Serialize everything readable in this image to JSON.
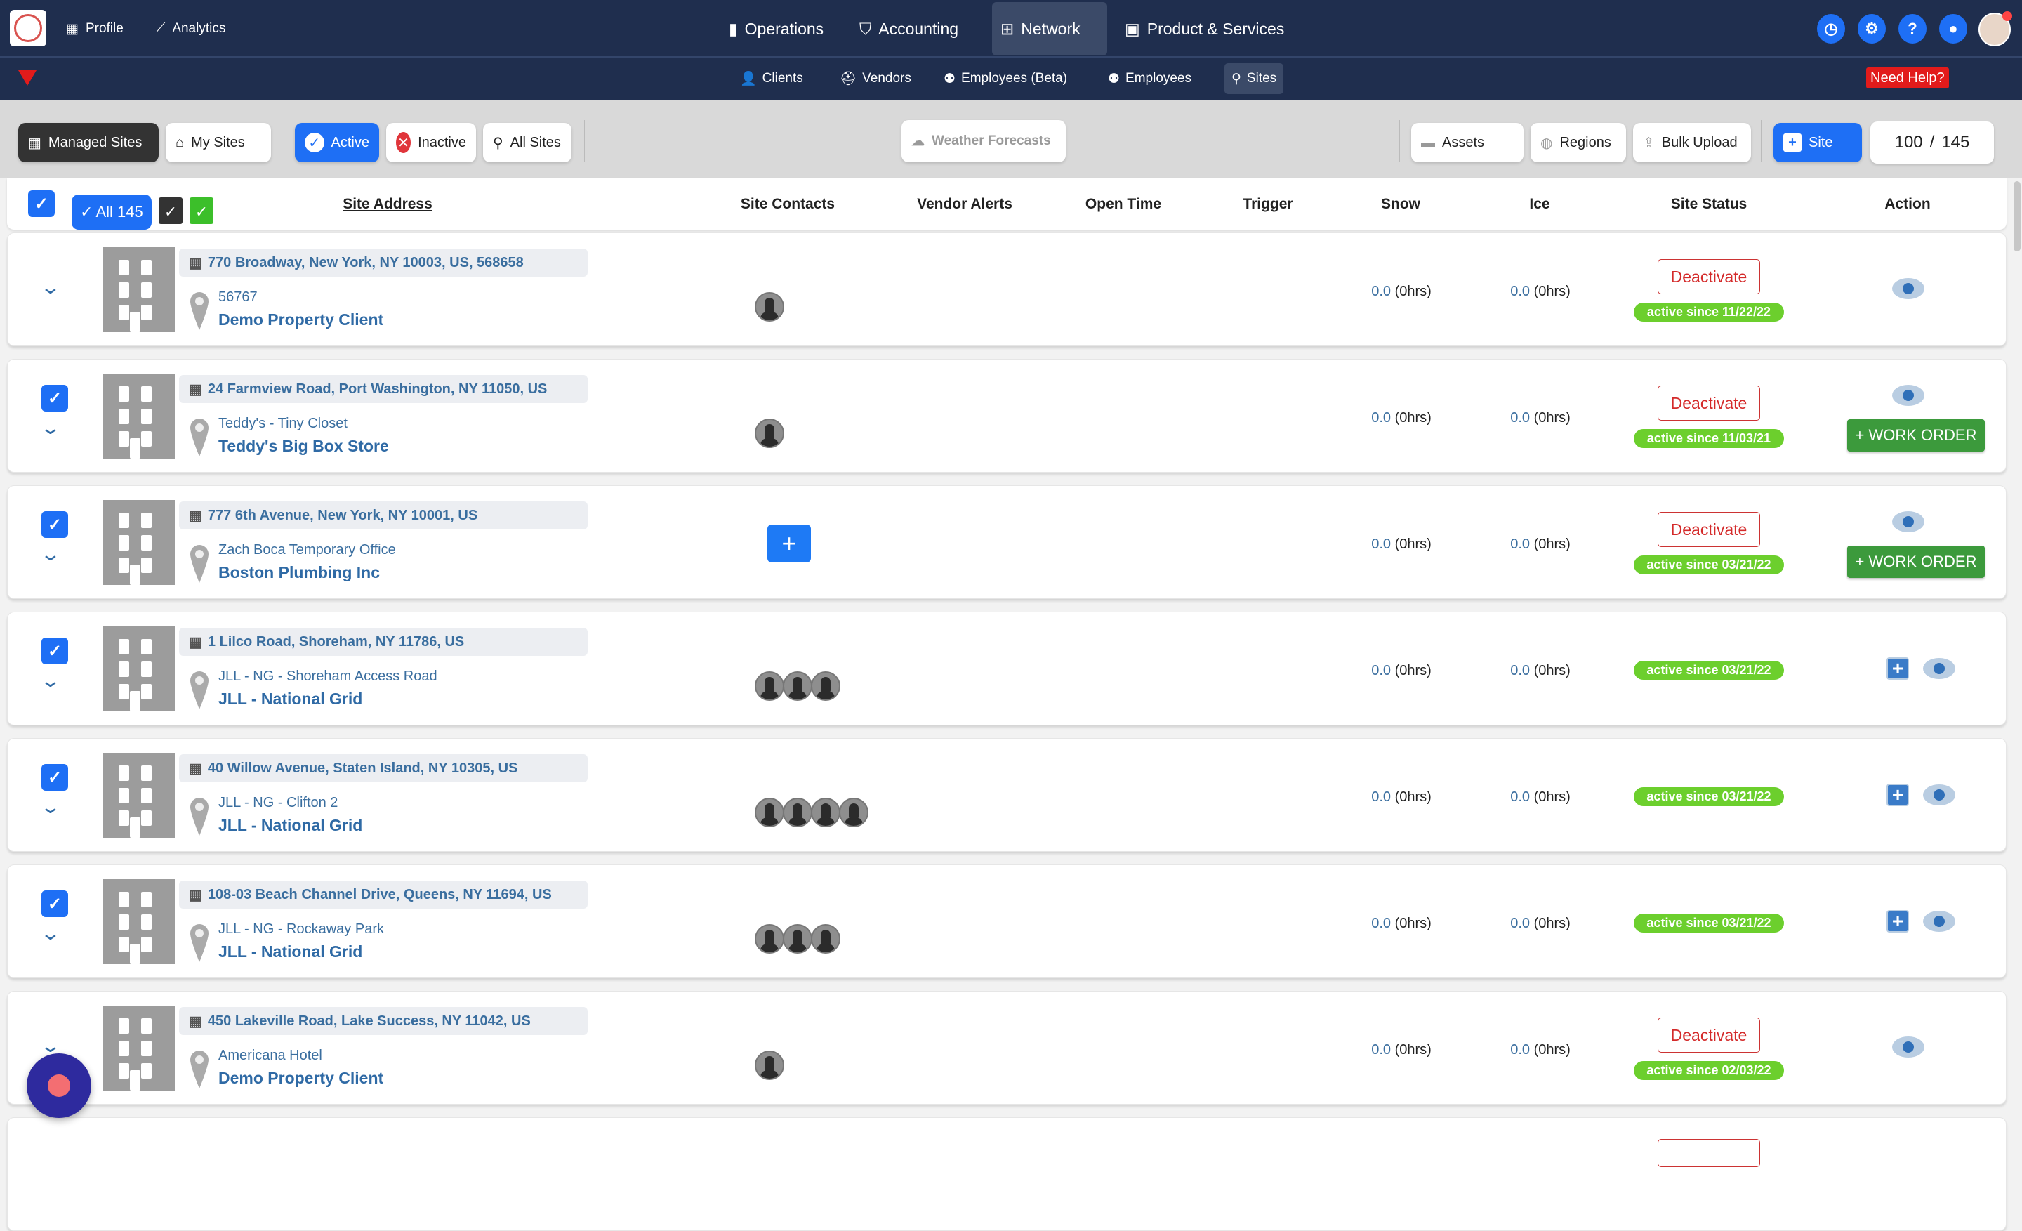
{
  "topnav": {
    "profile": "Profile",
    "analytics": "Analytics",
    "operations": "Operations",
    "accounting": "Accounting",
    "network": "Network",
    "products": "Product & Services"
  },
  "subnav": {
    "clients": "Clients",
    "vendors": "Vendors",
    "employees_beta": "Employees (Beta)",
    "employees": "Employees",
    "sites": "Sites",
    "help": "Need Help?"
  },
  "toolbar": {
    "managed": "Managed Sites",
    "my_sites": "My Sites",
    "active": "Active",
    "inactive": "Inactive",
    "all_sites": "All Sites",
    "weather": "Weather Forecasts",
    "assets": "Assets",
    "regions": "Regions",
    "bulk_upload": "Bulk Upload",
    "add_site": "Site",
    "shown": "100",
    "total": "145",
    "sep": "/"
  },
  "table": {
    "all_label": "All 145",
    "columns": [
      "Site Address",
      "Site Contacts",
      "Vendor Alerts",
      "Open Time",
      "Trigger",
      "Snow",
      "Ice",
      "Site Status",
      "Action"
    ]
  },
  "row_labels": {
    "deactivate": "Deactivate",
    "work_order": "+ WORK ORDER",
    "hrs": "(0hrs)"
  },
  "rows": [
    {
      "checked": false,
      "address": "770 Broadway, New York, NY 10003, US, 568658",
      "site": "56767",
      "client": "Demo Property Client",
      "contacts": 1,
      "snow": "0.0",
      "ice": "0.0",
      "deactivate": true,
      "status": "active since 11/22/22",
      "actions": "eye"
    },
    {
      "checked": true,
      "address": "24 Farmview Road, Port Washington, NY 11050, US",
      "site": "Teddy's - Tiny Closet",
      "client": "Teddy's Big Box Store",
      "contacts": 1,
      "snow": "0.0",
      "ice": "0.0",
      "deactivate": true,
      "status": "active since 11/03/21",
      "actions": "eye-wo"
    },
    {
      "checked": true,
      "address": "777 6th Avenue, New York, NY 10001, US",
      "site": "Zach Boca Temporary Office",
      "client": "Boston Plumbing Inc",
      "contacts": 0,
      "snow": "0.0",
      "ice": "0.0",
      "deactivate": true,
      "status": "active since 03/21/22",
      "actions": "eye-wo"
    },
    {
      "checked": true,
      "address": "1 Lilco Road, Shoreham, NY 11786, US",
      "site": "JLL - NG - Shoreham Access Road",
      "client": "JLL - National Grid",
      "contacts": 3,
      "snow": "0.0",
      "ice": "0.0",
      "deactivate": false,
      "status": "active since 03/21/22",
      "actions": "plus-eye"
    },
    {
      "checked": true,
      "address": "40 Willow Avenue, Staten Island, NY 10305, US",
      "site": "JLL - NG - Clifton 2",
      "client": "JLL - National Grid",
      "contacts": 4,
      "snow": "0.0",
      "ice": "0.0",
      "deactivate": false,
      "status": "active since 03/21/22",
      "actions": "plus-eye"
    },
    {
      "checked": true,
      "address": "108-03 Beach Channel Drive, Queens, NY 11694, US",
      "site": "JLL - NG - Rockaway Park",
      "client": "JLL - National Grid",
      "contacts": 3,
      "snow": "0.0",
      "ice": "0.0",
      "deactivate": false,
      "status": "active since 03/21/22",
      "actions": "plus-eye"
    },
    {
      "checked": false,
      "address": "450 Lakeville Road, Lake Success, NY 11042, US",
      "site": "Americana Hotel",
      "client": "Demo Property Client",
      "contacts": 1,
      "snow": "0.0",
      "ice": "0.0",
      "deactivate": true,
      "status": "active since 02/03/22",
      "actions": "eye"
    }
  ],
  "colors": {
    "nav": "#1f2e4e",
    "accent": "#1e6ff5",
    "active_status": "#6ccf2d",
    "deactivate": "#d42a2a",
    "work_order": "#3c9a3c",
    "help": "#e21b1b"
  }
}
